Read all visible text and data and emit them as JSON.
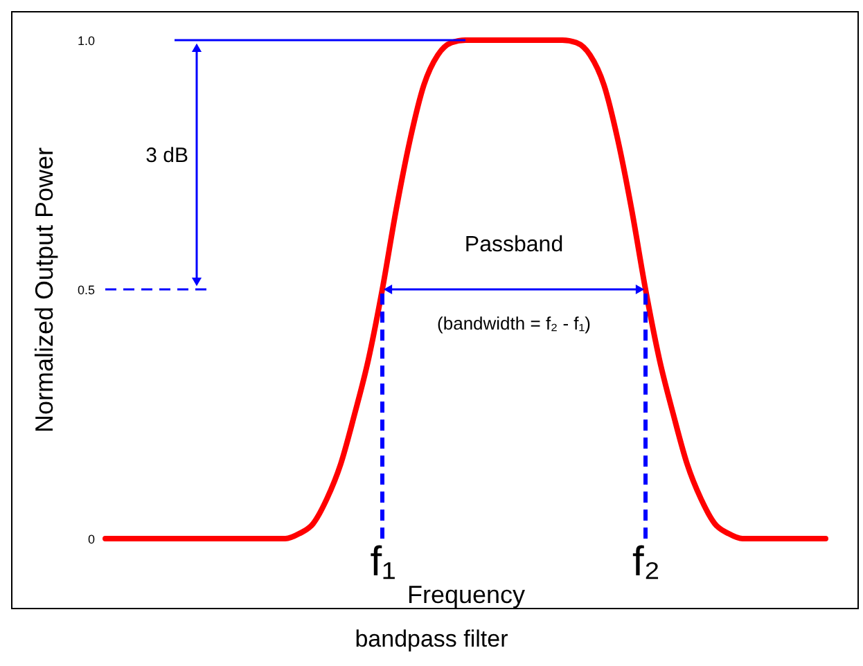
{
  "chart_data": {
    "type": "line",
    "xlabel": "Frequency",
    "ylabel": "Normalized Output Power",
    "categories": [
      null,
      null,
      null,
      null,
      null,
      null,
      null,
      null,
      null,
      null,
      null,
      null,
      null,
      null,
      null,
      null,
      null,
      null,
      null,
      null,
      "f₁",
      null,
      null,
      null,
      null,
      null,
      null,
      null,
      null,
      null,
      null,
      null,
      null,
      null,
      null,
      null,
      null,
      null,
      null,
      "f₂",
      null,
      null,
      null,
      null,
      null,
      null,
      null,
      null,
      null,
      null,
      null,
      null,
      null
    ],
    "series": [
      {
        "color": "#ff0000",
        "values": [
          0,
          0,
          0,
          0,
          0,
          0,
          0,
          0,
          0,
          0,
          0,
          0,
          0,
          0,
          0.01,
          0.03,
          0.08,
          0.15,
          0.25,
          0.36,
          0.5,
          0.66,
          0.8,
          0.91,
          0.97,
          0.995,
          1,
          1,
          1,
          1,
          1,
          1,
          1,
          1,
          0.995,
          0.97,
          0.91,
          0.8,
          0.66,
          0.5,
          0.36,
          0.25,
          0.15,
          0.08,
          0.03,
          0.01,
          0,
          0,
          0,
          0,
          0,
          0,
          0
        ]
      }
    ],
    "ylim": [
      0,
      1
    ],
    "yticks": [
      {
        "value": 0,
        "label": "0"
      },
      0.5,
      {
        "value": 1,
        "label": "1.0"
      }
    ],
    "ref_lines": [
      {
        "axis": "y",
        "value": 1,
        "color": "#0000ff",
        "line_style": "solid"
      },
      {
        "axis": "y",
        "value": 0.5,
        "color": "#0000ff",
        "line_style": "dashed"
      },
      {
        "axis": "x",
        "value": "f₁",
        "color": "#0000ff",
        "line_style": "dashed"
      },
      {
        "axis": "x",
        "value": "f₂",
        "color": "#0000ff",
        "line_style": "dashed"
      }
    ],
    "annotations": [
      "3 dB",
      "Passband",
      "(bandwidth = f₂ - f₁)",
      "bandpass filter"
    ]
  }
}
